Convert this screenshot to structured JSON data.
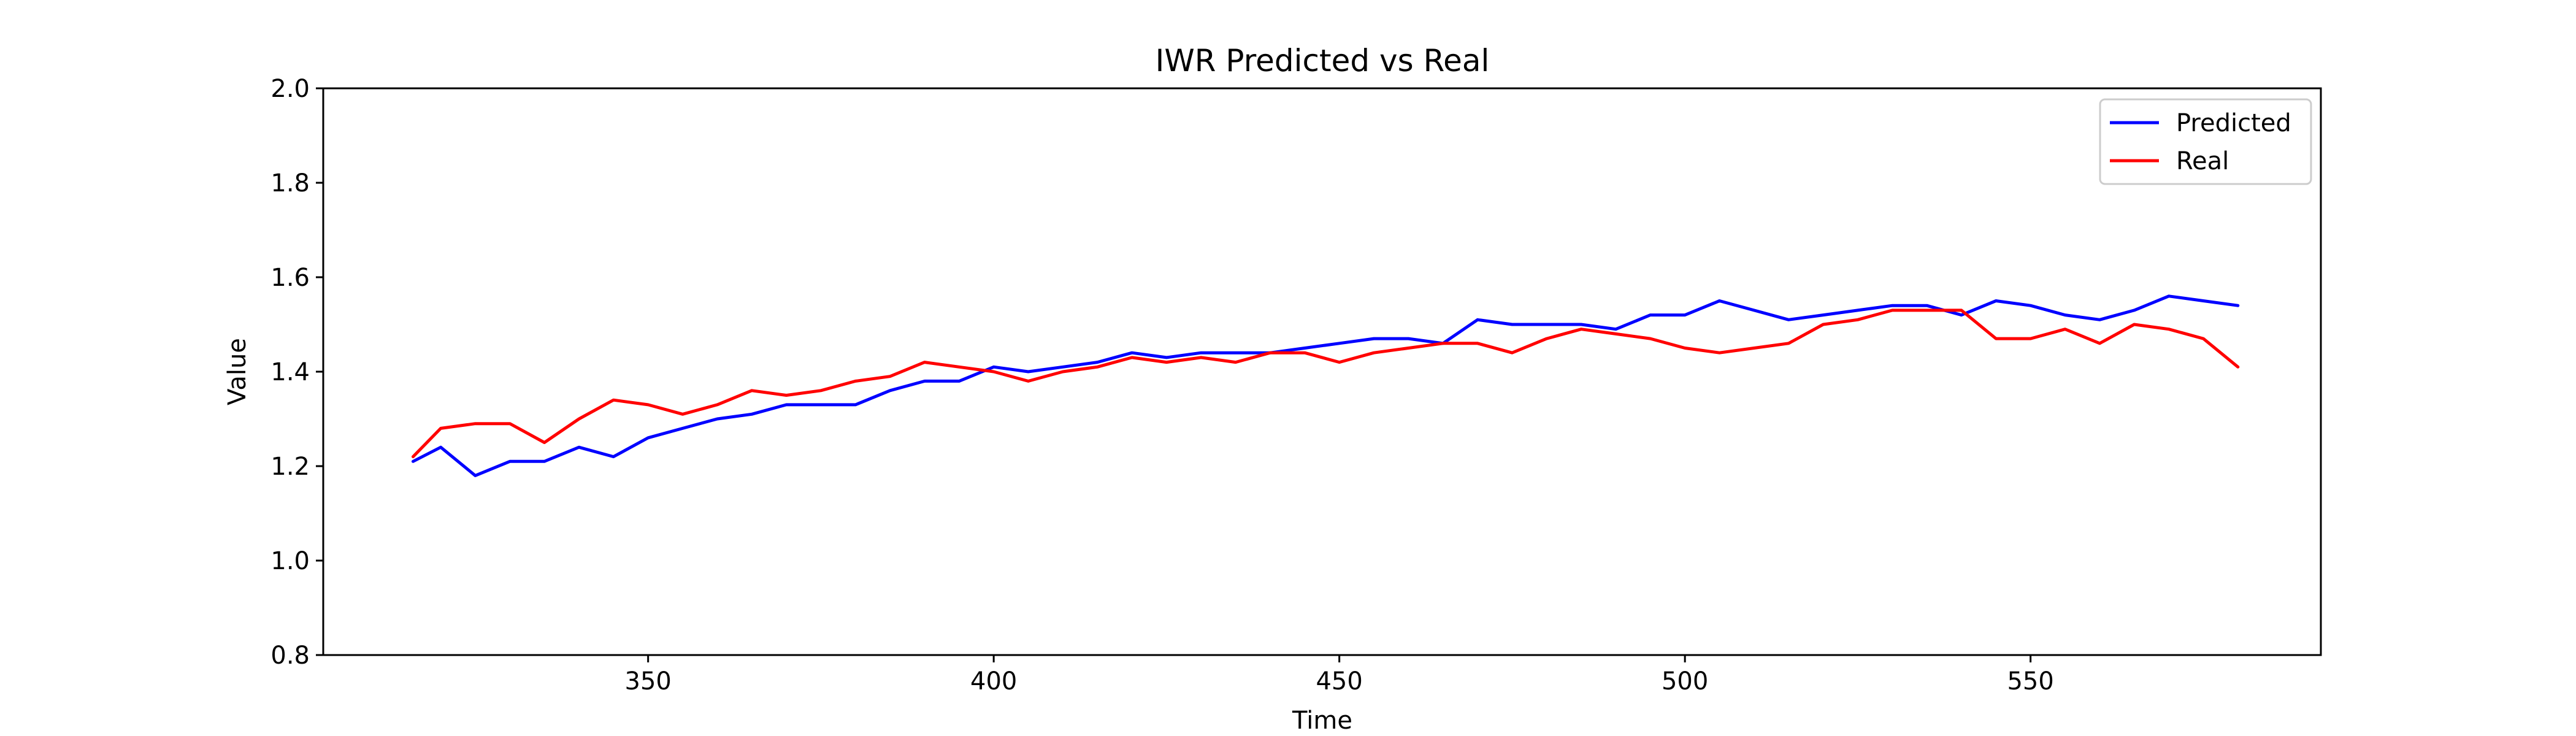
{
  "chart_data": {
    "type": "line",
    "title": "IWR Predicted vs Real",
    "xlabel": "Time",
    "ylabel": "Value",
    "xlim": [
      303,
      592
    ],
    "ylim": [
      0.8,
      2.0
    ],
    "x_ticks": [
      350,
      400,
      450,
      500,
      550
    ],
    "y_ticks": [
      0.8,
      1.0,
      1.2,
      1.4,
      1.6,
      1.8,
      2.0
    ],
    "legend_position": "top-right",
    "grid": false,
    "series": [
      {
        "name": "Predicted",
        "color": "#0000ff",
        "x": [
          316,
          320,
          325,
          330,
          335,
          340,
          345,
          350,
          355,
          360,
          365,
          370,
          375,
          380,
          385,
          390,
          395,
          400,
          405,
          410,
          415,
          420,
          425,
          430,
          435,
          440,
          445,
          450,
          455,
          460,
          465,
          470,
          475,
          480,
          485,
          490,
          495,
          500,
          505,
          510,
          515,
          520,
          525,
          530,
          535,
          540,
          545,
          550,
          555,
          560,
          565,
          570,
          575,
          580
        ],
        "y": [
          1.21,
          1.24,
          1.18,
          1.21,
          1.21,
          1.24,
          1.22,
          1.26,
          1.28,
          1.3,
          1.31,
          1.33,
          1.33,
          1.33,
          1.36,
          1.38,
          1.38,
          1.41,
          1.4,
          1.41,
          1.42,
          1.44,
          1.43,
          1.44,
          1.44,
          1.44,
          1.45,
          1.46,
          1.47,
          1.47,
          1.46,
          1.51,
          1.5,
          1.5,
          1.5,
          1.49,
          1.52,
          1.52,
          1.55,
          1.53,
          1.51,
          1.52,
          1.53,
          1.54,
          1.54,
          1.52,
          1.55,
          1.54,
          1.52,
          1.51,
          1.53,
          1.56,
          1.55,
          1.54
        ]
      },
      {
        "name": "Real",
        "color": "#ff0000",
        "x": [
          316,
          320,
          325,
          330,
          335,
          340,
          345,
          350,
          355,
          360,
          365,
          370,
          375,
          380,
          385,
          390,
          395,
          400,
          405,
          410,
          415,
          420,
          425,
          430,
          435,
          440,
          445,
          450,
          455,
          460,
          465,
          470,
          475,
          480,
          485,
          490,
          495,
          500,
          505,
          510,
          515,
          520,
          525,
          530,
          535,
          540,
          545,
          550,
          555,
          560,
          565,
          570,
          575,
          580
        ],
        "y": [
          1.22,
          1.28,
          1.29,
          1.29,
          1.25,
          1.3,
          1.34,
          1.33,
          1.31,
          1.33,
          1.36,
          1.35,
          1.36,
          1.38,
          1.39,
          1.42,
          1.41,
          1.4,
          1.38,
          1.4,
          1.41,
          1.43,
          1.42,
          1.43,
          1.42,
          1.44,
          1.44,
          1.42,
          1.44,
          1.45,
          1.46,
          1.46,
          1.44,
          1.47,
          1.49,
          1.48,
          1.47,
          1.45,
          1.44,
          1.45,
          1.46,
          1.5,
          1.51,
          1.53,
          1.53,
          1.53,
          1.47,
          1.47,
          1.49,
          1.46,
          1.5,
          1.49,
          1.47,
          1.41
        ]
      }
    ]
  }
}
